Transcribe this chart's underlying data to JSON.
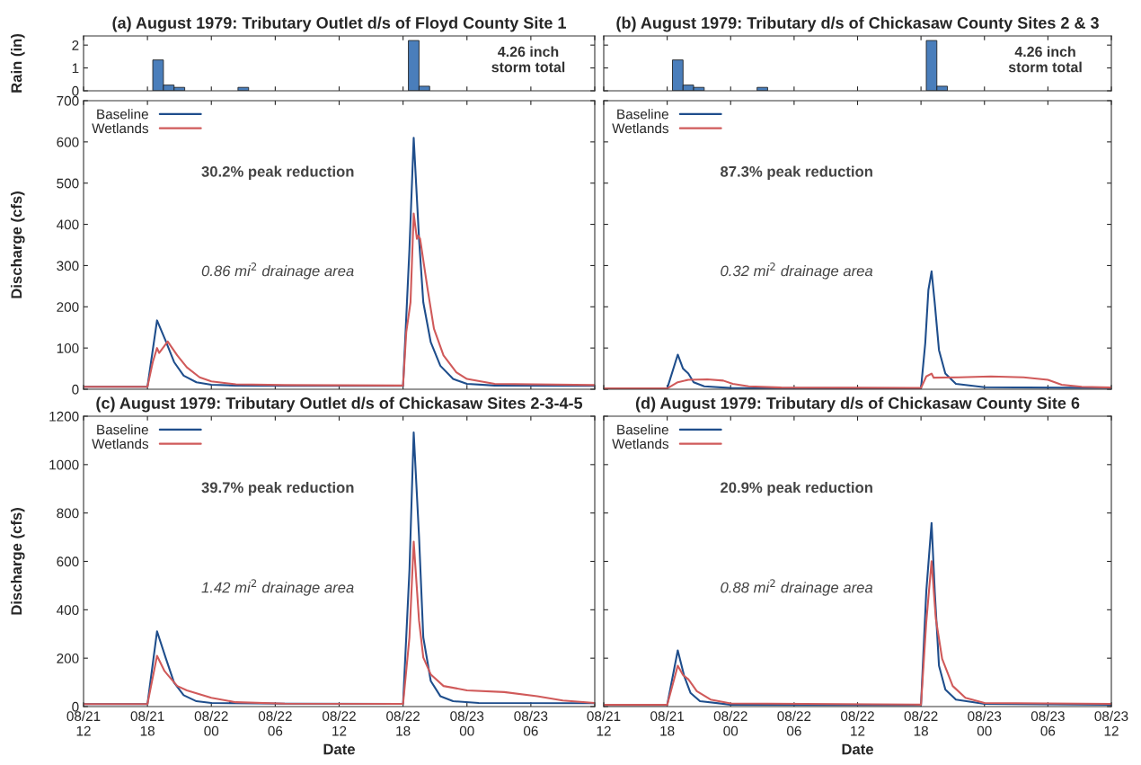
{
  "chart_data": [
    {
      "type": "bar",
      "title": "(a) August 1979: Tributary Outlet d/s of Floyd County Site 1",
      "ylabel": "Rain (in)",
      "x": [
        "1979-08-21T19:00",
        "1979-08-21T20:00",
        "1979-08-21T21:00",
        "1979-08-22T03:00",
        "1979-08-22T19:00",
        "1979-08-22T20:00"
      ],
      "values": [
        1.35,
        0.25,
        0.15,
        0.15,
        2.2,
        0.2
      ],
      "color": "#4a7ebb",
      "xlim": [
        "1979-08-21T12:00",
        "1979-08-23T12:00"
      ],
      "xticks": [
        "1979-08-21T12:00",
        "1979-08-21T18:00",
        "1979-08-22T00:00",
        "1979-08-22T06:00",
        "1979-08-22T12:00",
        "1979-08-22T18:00",
        "1979-08-23T00:00",
        "1979-08-23T06:00",
        "1979-08-23T12:00"
      ],
      "ylim": [
        0,
        2.4
      ],
      "yticks": [
        0,
        1,
        2
      ],
      "tick_labels": "y",
      "annotations": [
        "4.26 inch\nstorm total"
      ]
    },
    {
      "type": "bar",
      "title": "(b) August 1979: Tributary d/s of Chickasaw County Sites 2 & 3",
      "x": [
        "1979-08-21T19:00",
        "1979-08-21T20:00",
        "1979-08-21T21:00",
        "1979-08-22T03:00",
        "1979-08-22T19:00",
        "1979-08-22T20:00"
      ],
      "values": [
        1.35,
        0.25,
        0.15,
        0.15,
        2.2,
        0.2
      ],
      "color": "#4a7ebb",
      "xlim": [
        "1979-08-21T12:00",
        "1979-08-23T12:00"
      ],
      "xticks": [
        "1979-08-21T12:00",
        "1979-08-21T18:00",
        "1979-08-22T00:00",
        "1979-08-22T06:00",
        "1979-08-22T12:00",
        "1979-08-22T18:00",
        "1979-08-23T00:00",
        "1979-08-23T06:00",
        "1979-08-23T12:00"
      ],
      "ylim": [
        0,
        2.4
      ],
      "yticks": [
        0,
        1,
        2
      ],
      "tick_labels": false,
      "annotations": [
        "4.26 inch\nstorm total"
      ]
    },
    {
      "type": "line",
      "ylabel": "Discharge (cfs)",
      "xlim": [
        "1979-08-21T12:00",
        "1979-08-23T12:00"
      ],
      "xticks": [
        "1979-08-21T12:00",
        "1979-08-21T18:00",
        "1979-08-22T00:00",
        "1979-08-22T06:00",
        "1979-08-22T12:00",
        "1979-08-22T18:00",
        "1979-08-23T00:00",
        "1979-08-23T06:00",
        "1979-08-23T12:00"
      ],
      "ylim": [
        0,
        700
      ],
      "yticks": [
        0,
        100,
        200,
        300,
        400,
        500,
        600,
        700
      ],
      "tick_labels": "y",
      "legend": "top left",
      "annotations": [
        "30.2% peak reduction",
        "0.86 mi$^{2}$ drainage area"
      ],
      "series": [
        {
          "name": "Baseline",
          "color": "#1f4e8c",
          "x": [
            "1979-08-21T12:00",
            "1979-08-21T18:00",
            "1979-08-21T18:54",
            "1979-08-21T19:42",
            "1979-08-21T20:30",
            "1979-08-21T21:24",
            "1979-08-21T22:36",
            "1979-08-22T00:00",
            "1979-08-22T02:18",
            "1979-08-22T07:00",
            "1979-08-22T18:00",
            "1979-08-22T18:36",
            "1979-08-22T19:00",
            "1979-08-22T19:30",
            "1979-08-22T19:54",
            "1979-08-22T20:36",
            "1979-08-22T21:30",
            "1979-08-22T22:42",
            "1979-08-23T00:00",
            "1979-08-23T02:36",
            "1979-08-23T12:00"
          ],
          "values": [
            6,
            6,
            167,
            118,
            66,
            33,
            17,
            11,
            9,
            8,
            8,
            340,
            610,
            365,
            211,
            114,
            57,
            25,
            13,
            9,
            8
          ]
        },
        {
          "name": "Wetlands",
          "color": "#d05a5a",
          "x": [
            "1979-08-21T12:00",
            "1979-08-21T18:00",
            "1979-08-21T18:30",
            "1979-08-21T18:54",
            "1979-08-21T19:06",
            "1979-08-21T19:54",
            "1979-08-21T20:48",
            "1979-08-21T21:42",
            "1979-08-21T22:54",
            "1979-08-22T00:00",
            "1979-08-22T02:18",
            "1979-08-22T06:54",
            "1979-08-22T18:00",
            "1979-08-22T18:18",
            "1979-08-22T18:42",
            "1979-08-22T19:00",
            "1979-08-22T19:18",
            "1979-08-22T19:24",
            "1979-08-22T19:36",
            "1979-08-22T20:18",
            "1979-08-22T20:54",
            "1979-08-22T21:48",
            "1979-08-22T23:00",
            "1979-08-23T00:00",
            "1979-08-23T02:36",
            "1979-08-23T12:00"
          ],
          "values": [
            6,
            6,
            66,
            100,
            88,
            116,
            82,
            53,
            29,
            19,
            12,
            10,
            9,
            138,
            211,
            426,
            365,
            373,
            365,
            244,
            147,
            82,
            41,
            25,
            13,
            10
          ]
        }
      ]
    },
    {
      "type": "line",
      "xlim": [
        "1979-08-21T12:00",
        "1979-08-23T12:00"
      ],
      "xticks": [
        "1979-08-21T12:00",
        "1979-08-21T18:00",
        "1979-08-22T00:00",
        "1979-08-22T06:00",
        "1979-08-22T12:00",
        "1979-08-22T18:00",
        "1979-08-23T00:00",
        "1979-08-23T06:00",
        "1979-08-23T12:00"
      ],
      "ylim": [
        0,
        700
      ],
      "yticks": [
        0,
        100,
        200,
        300,
        400,
        500,
        600,
        700
      ],
      "tick_labels": false,
      "legend": "top left",
      "annotations": [
        "87.3% peak reduction",
        "0.32 mi$^{2}$ drainage area"
      ],
      "series": [
        {
          "name": "Baseline",
          "color": "#1f4e8c",
          "x": [
            "1979-08-21T12:00",
            "1979-08-21T18:00",
            "1979-08-21T19:00",
            "1979-08-21T19:30",
            "1979-08-21T20:00",
            "1979-08-21T20:30",
            "1979-08-21T21:30",
            "1979-08-22T00:00",
            "1979-08-22T18:00",
            "1979-08-22T18:24",
            "1979-08-22T18:42",
            "1979-08-22T19:00",
            "1979-08-22T19:18",
            "1979-08-22T19:42",
            "1979-08-22T20:18",
            "1979-08-22T21:18",
            "1979-08-23T00:00",
            "1979-08-23T12:00"
          ],
          "values": [
            2,
            2,
            84,
            50,
            38,
            17,
            7,
            3,
            2,
            111,
            241,
            286,
            209,
            95,
            38,
            13,
            5,
            3
          ]
        },
        {
          "name": "Wetlands",
          "color": "#d05a5a",
          "x": [
            "1979-08-21T12:00",
            "1979-08-21T18:00",
            "1979-08-21T19:00",
            "1979-08-21T20:00",
            "1979-08-21T21:48",
            "1979-08-21T23:18",
            "1979-08-22T00:12",
            "1979-08-22T01:42",
            "1979-08-22T04:48",
            "1979-08-22T18:00",
            "1979-08-22T18:30",
            "1979-08-22T19:00",
            "1979-08-22T19:12",
            "1979-08-22T21:36",
            "1979-08-23T00:36",
            "1979-08-23T03:42",
            "1979-08-23T06:00",
            "1979-08-23T07:18",
            "1979-08-23T09:12",
            "1979-08-23T12:00"
          ],
          "values": [
            2,
            2,
            17,
            23,
            24,
            21,
            13,
            7,
            4,
            3,
            31,
            38,
            28,
            29,
            31,
            29,
            23,
            11,
            6,
            4
          ]
        }
      ]
    },
    {
      "type": "line",
      "title": "(c) August 1979: Tributary Outlet d/s of Chickasaw Sites 2-3-4-5",
      "xlabel": "Date",
      "ylabel": "Discharge (cfs)",
      "xlim": [
        "1979-08-21T12:00",
        "1979-08-23T12:00"
      ],
      "xticks": [
        {
          "value": "1979-08-21T12:00",
          "label": "08/21\n12"
        },
        {
          "value": "1979-08-21T18:00",
          "label": "08/21\n18"
        },
        {
          "value": "1979-08-22T00:00",
          "label": "08/22\n00"
        },
        {
          "value": "1979-08-22T06:00",
          "label": "08/22\n06"
        },
        {
          "value": "1979-08-22T12:00",
          "label": "08/22\n12"
        },
        {
          "value": "1979-08-22T18:00",
          "label": "08/22\n18"
        },
        {
          "value": "1979-08-23T00:00",
          "label": "08/23\n00"
        },
        {
          "value": "1979-08-23T06:00",
          "label": "08/23\n06"
        },
        {
          "value": "1979-08-23T12:00",
          "label": null
        }
      ],
      "ylim": [
        0,
        1200
      ],
      "yticks": [
        0,
        200,
        400,
        600,
        800,
        1000,
        1200
      ],
      "legend": "top left",
      "annotations": [
        "39.7% peak reduction",
        "1.42 mi$^{2}$ drainage area"
      ],
      "series": [
        {
          "name": "Baseline",
          "color": "#1f4e8c",
          "x": [
            "1979-08-21T12:00",
            "1979-08-21T18:00",
            "1979-08-21T18:54",
            "1979-08-21T19:42",
            "1979-08-21T20:30",
            "1979-08-21T21:24",
            "1979-08-21T22:36",
            "1979-08-22T00:00",
            "1979-08-22T06:54",
            "1979-08-22T18:00",
            "1979-08-22T18:36",
            "1979-08-22T19:00",
            "1979-08-22T19:30",
            "1979-08-22T19:54",
            "1979-08-22T20:36",
            "1979-08-22T21:30",
            "1979-08-22T22:42",
            "1979-08-23T01:06",
            "1979-08-23T12:00"
          ],
          "values": [
            10,
            10,
            311,
            203,
            99,
            47,
            22,
            15,
            12,
            11,
            564,
            1133,
            703,
            286,
            106,
            43,
            22,
            15,
            14
          ]
        },
        {
          "name": "Wetlands",
          "color": "#d05a5a",
          "x": [
            "1979-08-21T12:00",
            "1979-08-21T18:00",
            "1979-08-21T18:54",
            "1979-08-21T19:36",
            "1979-08-21T20:00",
            "1979-08-21T20:48",
            "1979-08-21T21:42",
            "1979-08-22T00:00",
            "1979-08-22T02:18",
            "1979-08-22T06:54",
            "1979-08-22T18:00",
            "1979-08-22T18:36",
            "1979-08-22T19:00",
            "1979-08-22T19:30",
            "1979-08-22T19:54",
            "1979-08-22T20:36",
            "1979-08-22T21:48",
            "1979-08-23T00:00",
            "1979-08-23T03:30",
            "1979-08-23T06:36",
            "1979-08-23T09:00",
            "1979-08-23T12:00"
          ],
          "values": [
            10,
            10,
            210,
            147,
            126,
            85,
            67,
            36,
            18,
            12,
            11,
            286,
            682,
            356,
            203,
            133,
            85,
            67,
            60,
            43,
            25,
            15
          ]
        }
      ]
    },
    {
      "type": "line",
      "title": "(d) August 1979: Tributary d/s of Chickasaw County Site 6",
      "xlabel": "Date",
      "xlim": [
        "1979-08-21T12:00",
        "1979-08-23T12:00"
      ],
      "xticks": [
        {
          "value": "1979-08-21T12:00",
          "label": "08/21\n12"
        },
        {
          "value": "1979-08-21T18:00",
          "label": "08/21\n18"
        },
        {
          "value": "1979-08-22T00:00",
          "label": "08/22\n00"
        },
        {
          "value": "1979-08-22T06:00",
          "label": "08/22\n06"
        },
        {
          "value": "1979-08-22T12:00",
          "label": "08/22\n12"
        },
        {
          "value": "1979-08-22T18:00",
          "label": "08/22\n18"
        },
        {
          "value": "1979-08-23T00:00",
          "label": "08/23\n00"
        },
        {
          "value": "1979-08-23T06:00",
          "label": "08/23\n06"
        },
        {
          "value": "1979-08-23T12:00",
          "label": "08/23\n12"
        }
      ],
      "ylim": [
        0,
        1200
      ],
      "yticks": [
        0,
        200,
        400,
        600,
        800,
        1000,
        1200
      ],
      "tick_labels": "x",
      "legend": "top left",
      "annotations": [
        "20.9% peak reduction",
        "0.88 mi$^{2}$ drainage area"
      ],
      "series": [
        {
          "name": "Baseline",
          "color": "#1f4e8c",
          "x": [
            "1979-08-21T12:00",
            "1979-08-21T18:00",
            "1979-08-21T19:00",
            "1979-08-21T19:36",
            "1979-08-21T20:12",
            "1979-08-21T21:06",
            "1979-08-22T00:00",
            "1979-08-22T18:00",
            "1979-08-22T18:30",
            "1979-08-22T19:00",
            "1979-08-22T19:18",
            "1979-08-22T19:42",
            "1979-08-22T20:18",
            "1979-08-22T21:18",
            "1979-08-23T00:00",
            "1979-08-23T12:00"
          ],
          "values": [
            7,
            7,
            232,
            127,
            57,
            22,
            8,
            6,
            476,
            759,
            476,
            169,
            71,
            29,
            11,
            8
          ]
        },
        {
          "name": "Wetlands",
          "color": "#d05a5a",
          "x": [
            "1979-08-21T12:00",
            "1979-08-21T18:00",
            "1979-08-21T19:00",
            "1979-08-21T19:30",
            "1979-08-21T20:00",
            "1979-08-21T20:48",
            "1979-08-21T22:06",
            "1979-08-22T00:00",
            "1979-08-22T18:00",
            "1979-08-22T18:30",
            "1979-08-22T19:00",
            "1979-08-22T19:24",
            "1979-08-22T20:00",
            "1979-08-22T21:00",
            "1979-08-22T22:12",
            "1979-08-23T00:00",
            "1979-08-23T12:00"
          ],
          "values": [
            7,
            7,
            169,
            130,
            113,
            64,
            29,
            13,
            8,
            350,
            601,
            364,
            197,
            85,
            36,
            15,
            11
          ]
        }
      ]
    }
  ]
}
